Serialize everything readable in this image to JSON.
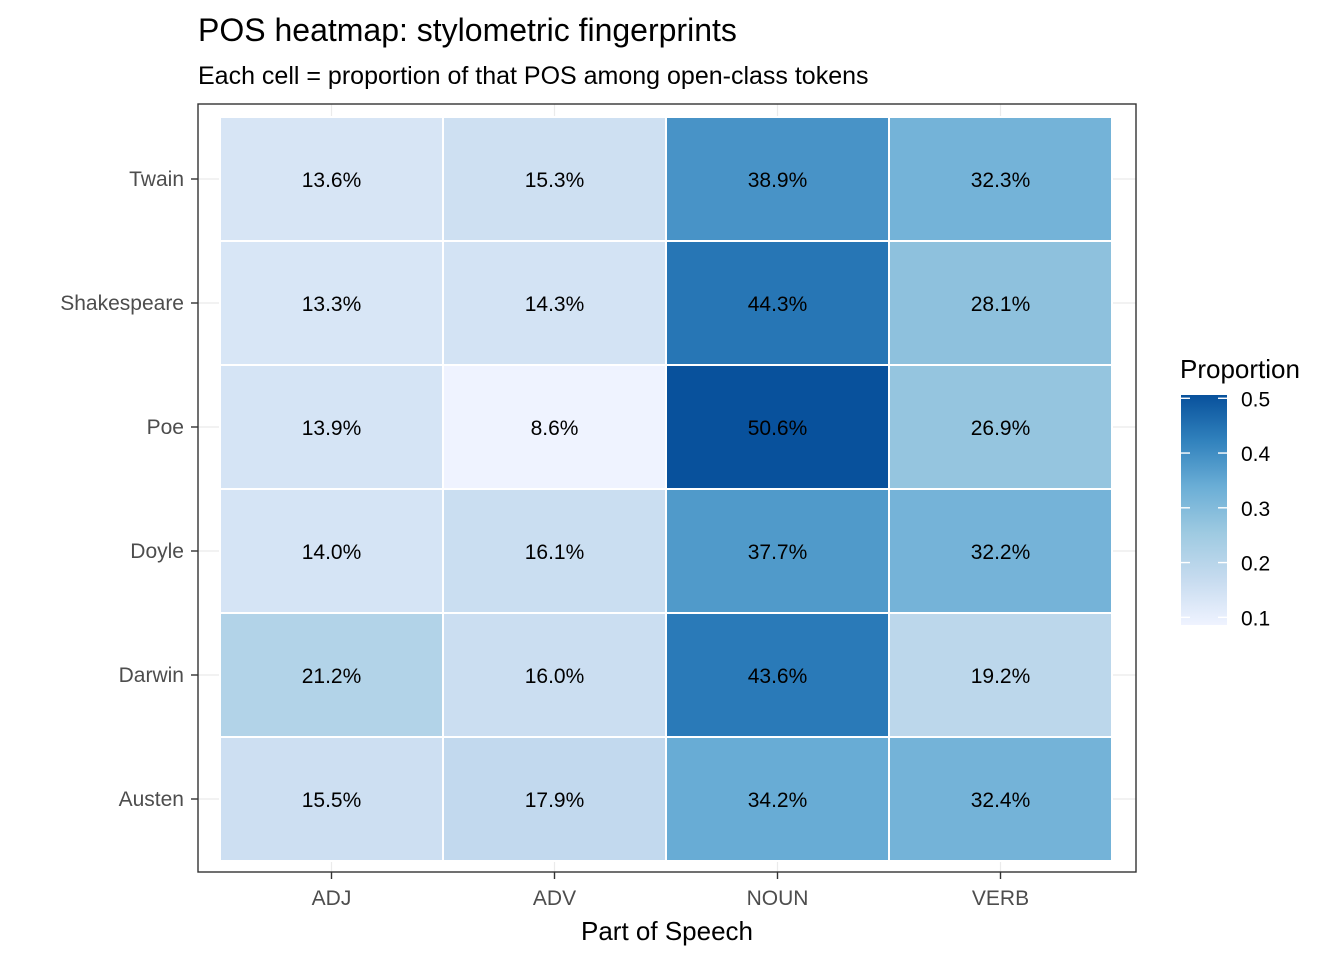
{
  "chart_data": {
    "type": "heatmap",
    "title": "POS heatmap: stylometric fingerprints",
    "subtitle": "Each cell = proportion of that POS among open-class tokens",
    "xlabel": "Part of Speech",
    "ylabel": "",
    "x_categories": [
      "ADJ",
      "ADV",
      "NOUN",
      "VERB"
    ],
    "y_categories_top_to_bottom": [
      "Twain",
      "Shakespeare",
      "Poe",
      "Doyle",
      "Darwin",
      "Austen"
    ],
    "values": [
      [
        0.136,
        0.153,
        0.389,
        0.323
      ],
      [
        0.133,
        0.143,
        0.443,
        0.281
      ],
      [
        0.139,
        0.086,
        0.506,
        0.269
      ],
      [
        0.14,
        0.161,
        0.377,
        0.322
      ],
      [
        0.212,
        0.16,
        0.436,
        0.192
      ],
      [
        0.155,
        0.179,
        0.342,
        0.324
      ]
    ],
    "cell_labels": [
      [
        "13.6%",
        "15.3%",
        "38.9%",
        "32.3%"
      ],
      [
        "13.3%",
        "14.3%",
        "44.3%",
        "28.1%"
      ],
      [
        "13.9%",
        "8.6%",
        "50.6%",
        "26.9%"
      ],
      [
        "14.0%",
        "16.1%",
        "37.7%",
        "32.2%"
      ],
      [
        "21.2%",
        "16.0%",
        "43.6%",
        "19.2%"
      ],
      [
        "15.5%",
        "17.9%",
        "34.2%",
        "32.4%"
      ]
    ],
    "legend": {
      "title": "Proportion",
      "placement": "right",
      "range": [
        0.086,
        0.506
      ],
      "ticks": [
        0.1,
        0.2,
        0.3,
        0.4,
        0.5
      ],
      "tick_labels": [
        "0.1",
        "0.2",
        "0.3",
        "0.4",
        "0.5"
      ],
      "colors": [
        "#eff3ff",
        "#c6dbef",
        "#9ecae1",
        "#6baed6",
        "#3182bd",
        "#08519c"
      ]
    },
    "grid": true
  }
}
